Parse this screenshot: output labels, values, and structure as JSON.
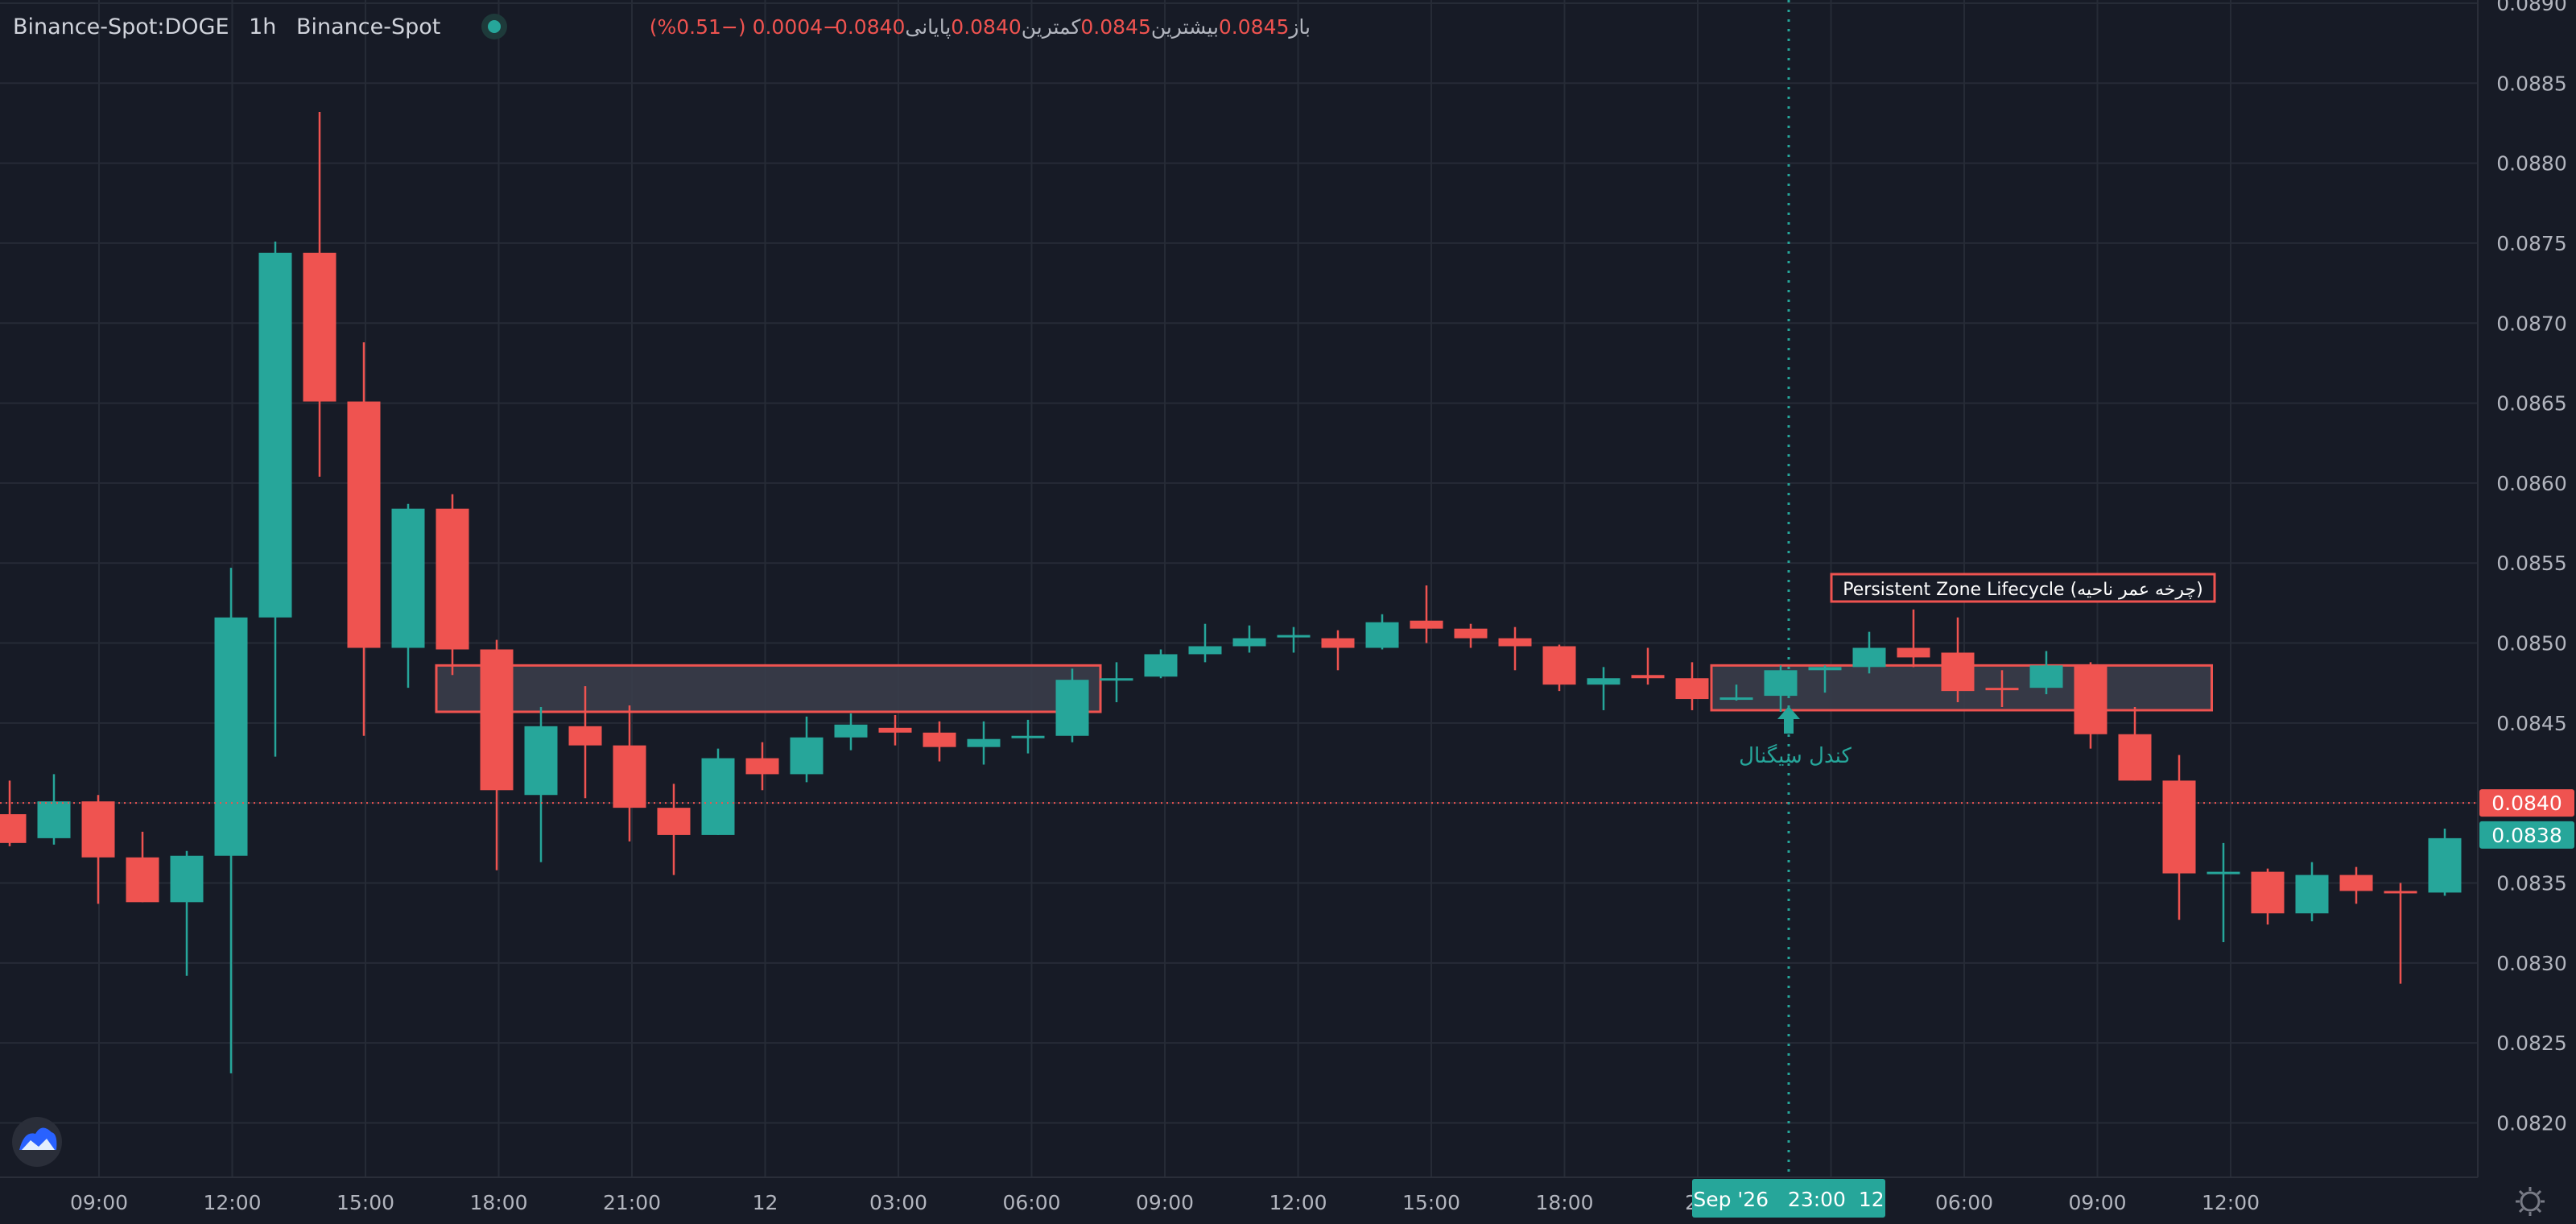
{
  "legend": {
    "symbol": "Binance-Spot:DOGE",
    "interval": "1h",
    "exchange": "Binance-Spot",
    "open_label": "باز",
    "open_value": "0.0845",
    "high_label": "بیشترین",
    "high_value": "0.0845",
    "low_label": "کمترین",
    "low_value": "0.0840",
    "close_label": "پایانی",
    "close_value": "0.0840",
    "change": "−0.0004 (−0.51%)"
  },
  "annotations": {
    "zone_label": "Persistent Zone Lifecycle (چرخه عمر ناحیه)",
    "signal_label": "کندل سیگنال"
  },
  "price_tags": {
    "last_price": "0.0840",
    "second_price": "0.0838"
  },
  "crosshair": {
    "time_label": "Sep '26   23:00  12"
  },
  "colors": {
    "up": "#26a69a",
    "down": "#ef5350",
    "background": "#171b26",
    "grid": "#262b36",
    "zone_border": "#ef5350",
    "zone_fill": "#3a3d4a"
  },
  "icons": {
    "logo": "tradingview-cloud-icon",
    "settings": "gear-icon"
  },
  "chart_data": {
    "type": "candlestick",
    "ylim": [
      0.08166,
      0.08902
    ],
    "yticks": [
      "0.0820",
      "0.0825",
      "0.0830",
      "0.0835",
      "0.0840",
      "0.0845",
      "0.0850",
      "0.0855",
      "0.0860",
      "0.0865",
      "0.0870",
      "0.0875",
      "0.0880",
      "0.0885",
      "0.0890"
    ],
    "xticks": [
      "09:00",
      "12:00",
      "15:00",
      "18:00",
      "21:00",
      "12",
      "03:00",
      "06:00",
      "09:00",
      "12:00",
      "15:00",
      "18:00",
      "21",
      "03:00",
      "06:00",
      "09:00",
      "12:00"
    ],
    "candles": [
      {
        "o": 0.08393,
        "h": 0.08414,
        "l": 0.08373,
        "c": 0.08375
      },
      {
        "o": 0.08378,
        "h": 0.08418,
        "l": 0.08374,
        "c": 0.08401
      },
      {
        "o": 0.08401,
        "h": 0.08405,
        "l": 0.08337,
        "c": 0.08366
      },
      {
        "o": 0.08366,
        "h": 0.08382,
        "l": 0.08338,
        "c": 0.08338
      },
      {
        "o": 0.08338,
        "h": 0.0837,
        "l": 0.08292,
        "c": 0.08367
      },
      {
        "o": 0.08367,
        "h": 0.08547,
        "l": 0.08231,
        "c": 0.08516
      },
      {
        "o": 0.08516,
        "h": 0.08751,
        "l": 0.08429,
        "c": 0.08744
      },
      {
        "o": 0.08744,
        "h": 0.08832,
        "l": 0.08604,
        "c": 0.08651
      },
      {
        "o": 0.08651,
        "h": 0.08688,
        "l": 0.08442,
        "c": 0.08497
      },
      {
        "o": 0.08497,
        "h": 0.08587,
        "l": 0.08472,
        "c": 0.08584
      },
      {
        "o": 0.08584,
        "h": 0.08593,
        "l": 0.0848,
        "c": 0.08496
      },
      {
        "o": 0.08496,
        "h": 0.08502,
        "l": 0.08358,
        "c": 0.08408
      },
      {
        "o": 0.08405,
        "h": 0.0846,
        "l": 0.08363,
        "c": 0.08448
      },
      {
        "o": 0.08448,
        "h": 0.08473,
        "l": 0.08403,
        "c": 0.08436
      },
      {
        "o": 0.08436,
        "h": 0.08461,
        "l": 0.08376,
        "c": 0.08397
      },
      {
        "o": 0.08397,
        "h": 0.08412,
        "l": 0.08355,
        "c": 0.0838
      },
      {
        "o": 0.0838,
        "h": 0.08434,
        "l": 0.0838,
        "c": 0.08428
      },
      {
        "o": 0.08428,
        "h": 0.08438,
        "l": 0.08408,
        "c": 0.08418
      },
      {
        "o": 0.08418,
        "h": 0.08454,
        "l": 0.08413,
        "c": 0.08441
      },
      {
        "o": 0.08441,
        "h": 0.08456,
        "l": 0.08433,
        "c": 0.08449
      },
      {
        "o": 0.08447,
        "h": 0.08455,
        "l": 0.08436,
        "c": 0.08444
      },
      {
        "o": 0.08444,
        "h": 0.08451,
        "l": 0.08426,
        "c": 0.08435
      },
      {
        "o": 0.08435,
        "h": 0.08451,
        "l": 0.08424,
        "c": 0.0844
      },
      {
        "o": 0.08441,
        "h": 0.08452,
        "l": 0.08431,
        "c": 0.08442
      },
      {
        "o": 0.08442,
        "h": 0.08484,
        "l": 0.08438,
        "c": 0.08477
      },
      {
        "o": 0.08477,
        "h": 0.08488,
        "l": 0.08463,
        "c": 0.08478
      },
      {
        "o": 0.08479,
        "h": 0.08496,
        "l": 0.08478,
        "c": 0.08493
      },
      {
        "o": 0.08493,
        "h": 0.08512,
        "l": 0.08488,
        "c": 0.08498
      },
      {
        "o": 0.08498,
        "h": 0.08511,
        "l": 0.08494,
        "c": 0.08503
      },
      {
        "o": 0.08505,
        "h": 0.0851,
        "l": 0.08494,
        "c": 0.08505
      },
      {
        "o": 0.08503,
        "h": 0.08508,
        "l": 0.08483,
        "c": 0.08497
      },
      {
        "o": 0.08497,
        "h": 0.08518,
        "l": 0.08496,
        "c": 0.08513
      },
      {
        "o": 0.08514,
        "h": 0.08536,
        "l": 0.085,
        "c": 0.08509
      },
      {
        "o": 0.08509,
        "h": 0.08512,
        "l": 0.08497,
        "c": 0.08503
      },
      {
        "o": 0.08503,
        "h": 0.0851,
        "l": 0.08483,
        "c": 0.08498
      },
      {
        "o": 0.08498,
        "h": 0.08499,
        "l": 0.0847,
        "c": 0.08474
      },
      {
        "o": 0.08474,
        "h": 0.08485,
        "l": 0.08458,
        "c": 0.08478
      },
      {
        "o": 0.0848,
        "h": 0.08497,
        "l": 0.08474,
        "c": 0.08478
      },
      {
        "o": 0.08478,
        "h": 0.08488,
        "l": 0.08458,
        "c": 0.08465
      },
      {
        "o": 0.08465,
        "h": 0.08474,
        "l": 0.08464,
        "c": 0.08466
      },
      {
        "o": 0.08467,
        "h": 0.08486,
        "l": 0.08457,
        "c": 0.08483
      },
      {
        "o": 0.08483,
        "h": 0.08486,
        "l": 0.08469,
        "c": 0.08485
      },
      {
        "o": 0.08485,
        "h": 0.08507,
        "l": 0.08481,
        "c": 0.08497
      },
      {
        "o": 0.08497,
        "h": 0.08521,
        "l": 0.08485,
        "c": 0.08491
      },
      {
        "o": 0.08494,
        "h": 0.08516,
        "l": 0.08463,
        "c": 0.0847
      },
      {
        "o": 0.08472,
        "h": 0.08483,
        "l": 0.0846,
        "c": 0.08471
      },
      {
        "o": 0.08472,
        "h": 0.08495,
        "l": 0.08468,
        "c": 0.08486
      },
      {
        "o": 0.08486,
        "h": 0.08488,
        "l": 0.08434,
        "c": 0.08443
      },
      {
        "o": 0.08443,
        "h": 0.0846,
        "l": 0.08414,
        "c": 0.08414
      },
      {
        "o": 0.08414,
        "h": 0.0843,
        "l": 0.08327,
        "c": 0.08356
      },
      {
        "o": 0.08356,
        "h": 0.08375,
        "l": 0.08313,
        "c": 0.08357
      },
      {
        "o": 0.08357,
        "h": 0.08359,
        "l": 0.08324,
        "c": 0.08331
      },
      {
        "o": 0.08331,
        "h": 0.08363,
        "l": 0.08326,
        "c": 0.08355
      },
      {
        "o": 0.08355,
        "h": 0.0836,
        "l": 0.08337,
        "c": 0.08345
      },
      {
        "o": 0.08345,
        "h": 0.0835,
        "l": 0.08287,
        "c": 0.08344
      },
      {
        "o": 0.08344,
        "h": 0.08384,
        "l": 0.08342,
        "c": 0.08378
      }
    ]
  }
}
